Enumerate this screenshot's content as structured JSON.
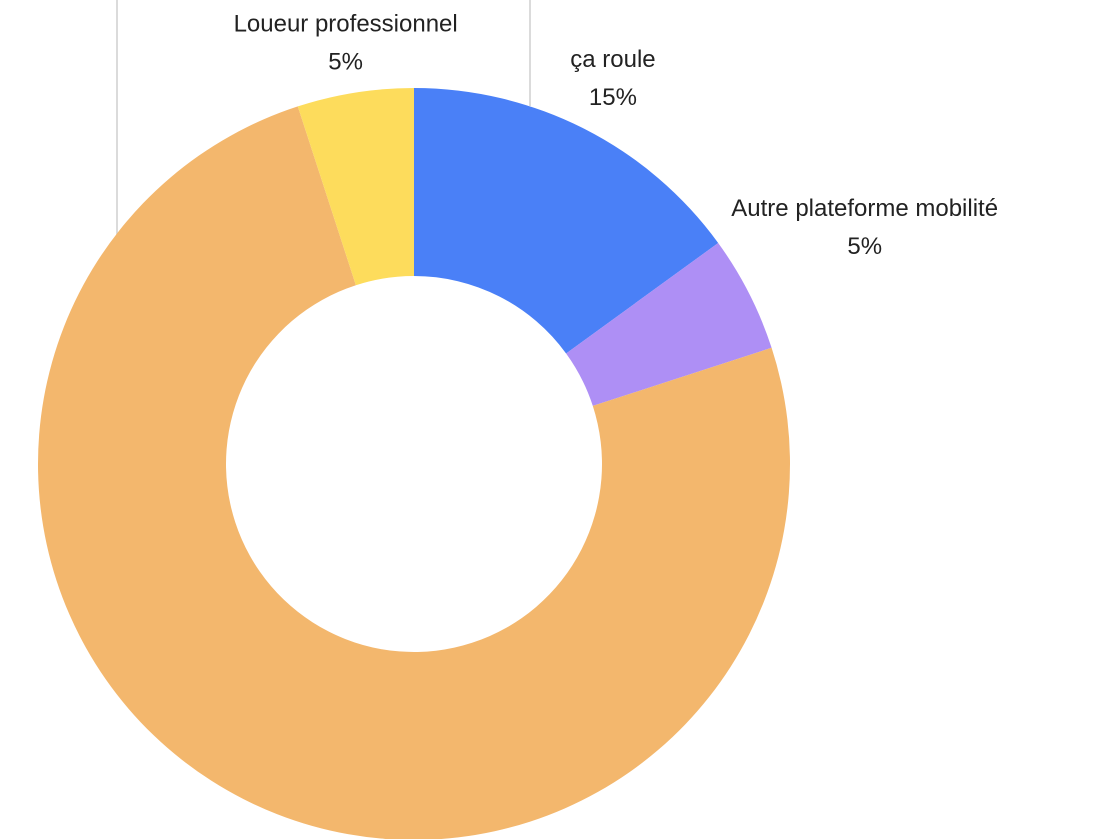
{
  "chart_data": {
    "type": "donut",
    "categories": [
      "ça roule",
      "Autre plateforme mobilité",
      null,
      "Loueur professionnel"
    ],
    "values": [
      15,
      5,
      75,
      5
    ],
    "value_labels": [
      "15%",
      "5%",
      null,
      "5%"
    ],
    "colors": [
      "#4a80f7",
      "#ae8ff5",
      "#f3b76d",
      "#fddc5c"
    ]
  }
}
